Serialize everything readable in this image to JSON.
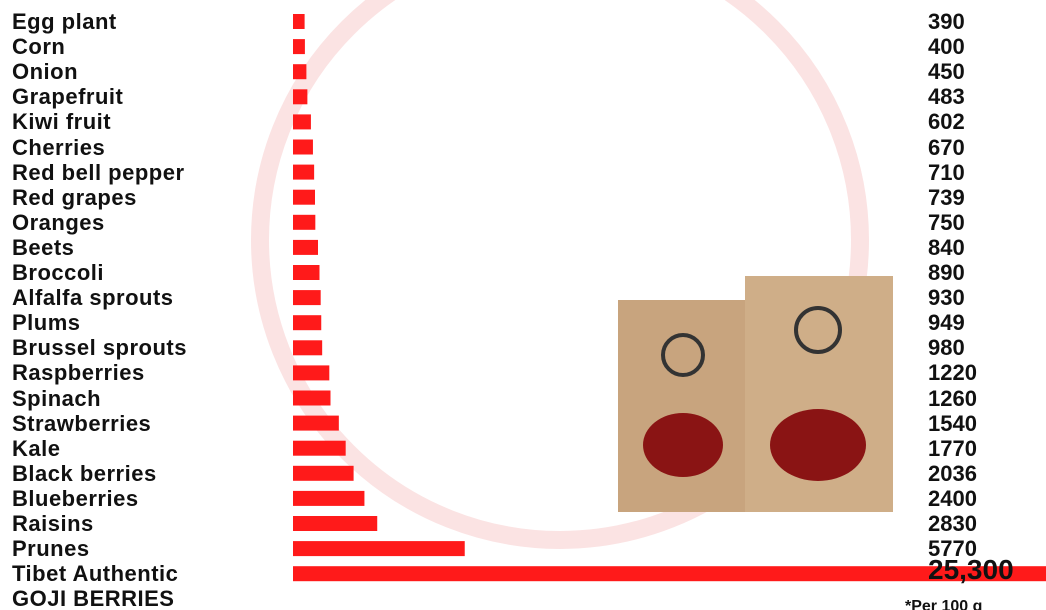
{
  "chart_data": {
    "type": "bar",
    "orientation": "horizontal",
    "color": "#ff1a1a",
    "categories": [
      "Egg plant",
      "Corn",
      "Onion",
      "Grapefruit",
      "Kiwi fruit",
      "Cherries",
      "Red bell pepper",
      "Red grapes",
      "Oranges",
      "Beets",
      "Broccoli",
      "Alfalfa sprouts",
      "Plums",
      "Brussel sprouts",
      "Raspberries",
      "Spinach",
      "Strawberries",
      "Kale",
      "Black berries",
      "Blueberries",
      "Raisins",
      "Prunes",
      "Tibet Authentic\nGOJI BERRIES"
    ],
    "values": [
      390,
      400,
      450,
      483,
      602,
      670,
      710,
      739,
      750,
      840,
      890,
      930,
      949,
      980,
      1220,
      1260,
      1540,
      1770,
      2036,
      2400,
      2830,
      5770,
      25300
    ],
    "value_labels": [
      "390",
      "400",
      "450",
      "483",
      "602",
      "670",
      "710",
      "739",
      "750",
      "840",
      "890",
      "930",
      "949",
      "980",
      "1220",
      "1260",
      "1540",
      "1770",
      "2036",
      "2400",
      "2830",
      "5770",
      "25,300"
    ],
    "note": "*Per 100 g"
  }
}
